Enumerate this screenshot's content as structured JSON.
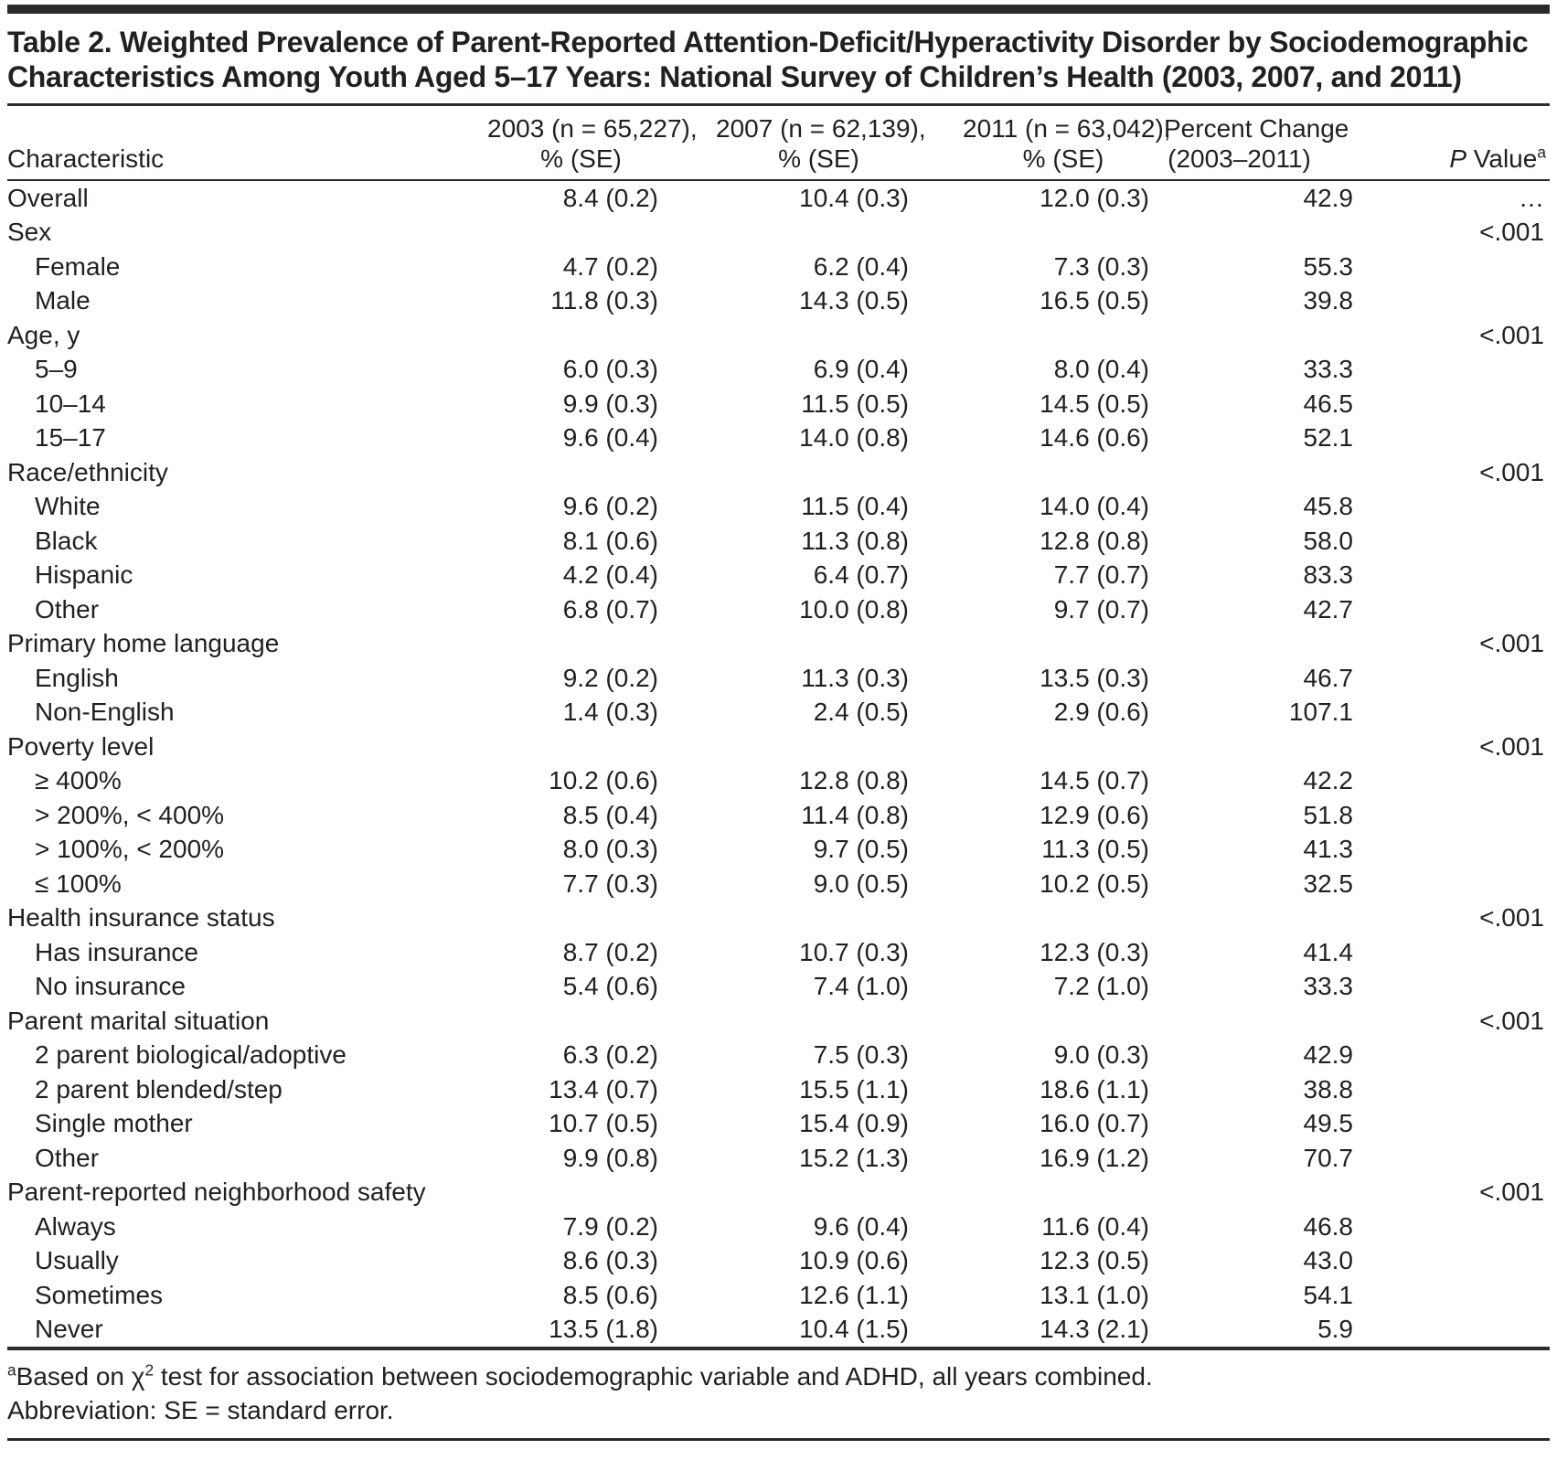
{
  "title": "Table 2. Weighted Prevalence of Parent-Reported Attention-Deficit/Hyperactivity Disorder by Sociodemographic Characteristics Among Youth Aged 5–17 Years: National Survey of Children’s Health (2003, 2007, and 2011)",
  "table": {
    "columns": {
      "characteristic": "Characteristic",
      "y2003": {
        "line1": "2003 (n = 65,227),",
        "line2": "% (SE)"
      },
      "y2007": {
        "line1": "2007 (n = 62,139),",
        "line2": "% (SE)"
      },
      "y2011": {
        "line1": "2011 (n = 63,042),",
        "line2": "% (SE)"
      },
      "change": {
        "line1": "Percent Change",
        "line2": "(2003–2011)"
      },
      "p_value": {
        "italic": "P",
        "rest": " Value",
        "sup": "a"
      }
    },
    "rows": [
      {
        "label": "Overall",
        "indent": false,
        "y2003": "8.4 (0.2)",
        "y2007": "10.4 (0.3)",
        "y2011": "12.0 (0.3)",
        "change": "42.9",
        "p": "…"
      },
      {
        "label": "Sex",
        "indent": false,
        "y2003": "",
        "y2007": "",
        "y2011": "",
        "change": "",
        "p": "<.001"
      },
      {
        "label": "Female",
        "indent": true,
        "y2003": "4.7 (0.2)",
        "y2007": "6.2 (0.4)",
        "y2011": "7.3 (0.3)",
        "change": "55.3",
        "p": ""
      },
      {
        "label": "Male",
        "indent": true,
        "y2003": "11.8 (0.3)",
        "y2007": "14.3 (0.5)",
        "y2011": "16.5 (0.5)",
        "change": "39.8",
        "p": ""
      },
      {
        "label": "Age, y",
        "indent": false,
        "y2003": "",
        "y2007": "",
        "y2011": "",
        "change": "",
        "p": "<.001"
      },
      {
        "label": "5–9",
        "indent": true,
        "y2003": "6.0 (0.3)",
        "y2007": "6.9 (0.4)",
        "y2011": "8.0 (0.4)",
        "change": "33.3",
        "p": ""
      },
      {
        "label": "10–14",
        "indent": true,
        "y2003": "9.9 (0.3)",
        "y2007": "11.5 (0.5)",
        "y2011": "14.5 (0.5)",
        "change": "46.5",
        "p": ""
      },
      {
        "label": "15–17",
        "indent": true,
        "y2003": "9.6 (0.4)",
        "y2007": "14.0 (0.8)",
        "y2011": "14.6 (0.6)",
        "change": "52.1",
        "p": ""
      },
      {
        "label": "Race/ethnicity",
        "indent": false,
        "y2003": "",
        "y2007": "",
        "y2011": "",
        "change": "",
        "p": "<.001"
      },
      {
        "label": "White",
        "indent": true,
        "y2003": "9.6 (0.2)",
        "y2007": "11.5 (0.4)",
        "y2011": "14.0 (0.4)",
        "change": "45.8",
        "p": ""
      },
      {
        "label": "Black",
        "indent": true,
        "y2003": "8.1 (0.6)",
        "y2007": "11.3 (0.8)",
        "y2011": "12.8 (0.8)",
        "change": "58.0",
        "p": ""
      },
      {
        "label": "Hispanic",
        "indent": true,
        "y2003": "4.2 (0.4)",
        "y2007": "6.4 (0.7)",
        "y2011": "7.7 (0.7)",
        "change": "83.3",
        "p": ""
      },
      {
        "label": "Other",
        "indent": true,
        "y2003": "6.8 (0.7)",
        "y2007": "10.0 (0.8)",
        "y2011": "9.7 (0.7)",
        "change": "42.7",
        "p": ""
      },
      {
        "label": "Primary home language",
        "indent": false,
        "y2003": "",
        "y2007": "",
        "y2011": "",
        "change": "",
        "p": "<.001"
      },
      {
        "label": "English",
        "indent": true,
        "y2003": "9.2 (0.2)",
        "y2007": "11.3 (0.3)",
        "y2011": "13.5 (0.3)",
        "change": "46.7",
        "p": ""
      },
      {
        "label": "Non-English",
        "indent": true,
        "y2003": "1.4 (0.3)",
        "y2007": "2.4 (0.5)",
        "y2011": "2.9 (0.6)",
        "change": "107.1",
        "p": ""
      },
      {
        "label": "Poverty level",
        "indent": false,
        "y2003": "",
        "y2007": "",
        "y2011": "",
        "change": "",
        "p": "<.001"
      },
      {
        "label": "≥ 400%",
        "indent": true,
        "y2003": "10.2 (0.6)",
        "y2007": "12.8 (0.8)",
        "y2011": "14.5 (0.7)",
        "change": "42.2",
        "p": ""
      },
      {
        "label": "> 200%, < 400%",
        "indent": true,
        "y2003": "8.5 (0.4)",
        "y2007": "11.4 (0.8)",
        "y2011": "12.9 (0.6)",
        "change": "51.8",
        "p": ""
      },
      {
        "label": "> 100%, < 200%",
        "indent": true,
        "y2003": "8.0 (0.3)",
        "y2007": "9.7 (0.5)",
        "y2011": "11.3 (0.5)",
        "change": "41.3",
        "p": ""
      },
      {
        "label": "≤ 100%",
        "indent": true,
        "y2003": "7.7 (0.3)",
        "y2007": "9.0 (0.5)",
        "y2011": "10.2 (0.5)",
        "change": "32.5",
        "p": ""
      },
      {
        "label": "Health insurance status",
        "indent": false,
        "y2003": "",
        "y2007": "",
        "y2011": "",
        "change": "",
        "p": "<.001"
      },
      {
        "label": "Has insurance",
        "indent": true,
        "y2003": "8.7 (0.2)",
        "y2007": "10.7 (0.3)",
        "y2011": "12.3 (0.3)",
        "change": "41.4",
        "p": ""
      },
      {
        "label": "No insurance",
        "indent": true,
        "y2003": "5.4 (0.6)",
        "y2007": "7.4 (1.0)",
        "y2011": "7.2 (1.0)",
        "change": "33.3",
        "p": ""
      },
      {
        "label": "Parent marital situation",
        "indent": false,
        "y2003": "",
        "y2007": "",
        "y2011": "",
        "change": "",
        "p": "<.001"
      },
      {
        "label": "2 parent biological/adoptive",
        "indent": true,
        "y2003": "6.3 (0.2)",
        "y2007": "7.5 (0.3)",
        "y2011": "9.0 (0.3)",
        "change": "42.9",
        "p": ""
      },
      {
        "label": "2 parent blended/step",
        "indent": true,
        "y2003": "13.4 (0.7)",
        "y2007": "15.5 (1.1)",
        "y2011": "18.6 (1.1)",
        "change": "38.8",
        "p": ""
      },
      {
        "label": "Single mother",
        "indent": true,
        "y2003": "10.7 (0.5)",
        "y2007": "15.4 (0.9)",
        "y2011": "16.0 (0.7)",
        "change": "49.5",
        "p": ""
      },
      {
        "label": "Other",
        "indent": true,
        "y2003": "9.9 (0.8)",
        "y2007": "15.2 (1.3)",
        "y2011": "16.9 (1.2)",
        "change": "70.7",
        "p": ""
      },
      {
        "label": "Parent-reported neighborhood safety",
        "indent": false,
        "y2003": "",
        "y2007": "",
        "y2011": "",
        "change": "",
        "p": "<.001"
      },
      {
        "label": "Always",
        "indent": true,
        "y2003": "7.9 (0.2)",
        "y2007": "9.6 (0.4)",
        "y2011": "11.6 (0.4)",
        "change": "46.8",
        "p": ""
      },
      {
        "label": "Usually",
        "indent": true,
        "y2003": "8.6 (0.3)",
        "y2007": "10.9 (0.6)",
        "y2011": "12.3 (0.5)",
        "change": "43.0",
        "p": ""
      },
      {
        "label": "Sometimes",
        "indent": true,
        "y2003": "8.5 (0.6)",
        "y2007": "12.6 (1.1)",
        "y2011": "13.1 (1.0)",
        "change": "54.1",
        "p": ""
      },
      {
        "label": "Never",
        "indent": true,
        "y2003": "13.5 (1.8)",
        "y2007": "10.4 (1.5)",
        "y2011": "14.3 (2.1)",
        "change": "5.9",
        "p": ""
      }
    ]
  },
  "footnotes": {
    "a_sup": "a",
    "a_pre": "Based on χ",
    "a_chi_sup": "2",
    "a_post": " test for association between sociodemographic variable and ADHD, all years combined.",
    "abbreviation": "Abbreviation: SE = standard error."
  },
  "colors": {
    "rule": "#2b2b2b",
    "text": "#231f20",
    "background": "#ffffff"
  }
}
